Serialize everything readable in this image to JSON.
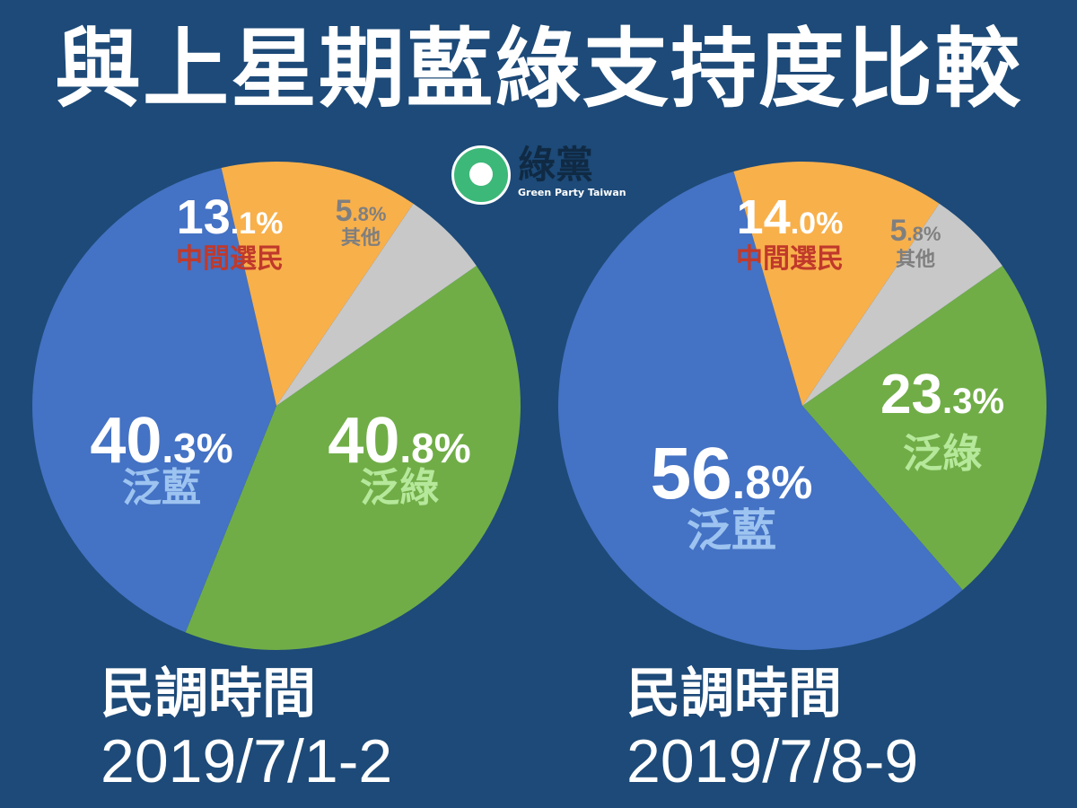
{
  "title": "與上星期藍綠支持度比較",
  "logo": {
    "name": "綠黨",
    "subtitle": "Green Party Taiwan"
  },
  "colors": {
    "background": "#1d4a78",
    "blue": "#4472c4",
    "orange": "#f8b04b",
    "gray": "#c8c8c8",
    "green": "#70ad47",
    "blue_label": "#9dc3f0",
    "green_label": "#b6e89b",
    "orange_label": "#c0392b",
    "gray_label": "#7f7f7f"
  },
  "chart_data": [
    {
      "type": "pie",
      "survey_label": "民調時間",
      "survey_date": "2019/7/1-2",
      "slices": [
        {
          "label": "泛綠",
          "value": 40.8,
          "int": "40",
          "dec": ".8%",
          "color": "#70ad47"
        },
        {
          "label": "泛藍",
          "value": 40.3,
          "int": "40",
          "dec": ".3%",
          "color": "#4472c4"
        },
        {
          "label": "中間選民",
          "value": 13.1,
          "int": "13",
          "dec": ".1%",
          "color": "#f8b04b"
        },
        {
          "label": "其他",
          "value": 5.8,
          "int": "5",
          "dec": ".8%",
          "color": "#c8c8c8"
        }
      ]
    },
    {
      "type": "pie",
      "survey_label": "民調時間",
      "survey_date": "2019/7/8-9",
      "slices": [
        {
          "label": "泛綠",
          "value": 23.3,
          "int": "23",
          "dec": ".3%",
          "color": "#70ad47"
        },
        {
          "label": "泛藍",
          "value": 56.8,
          "int": "56",
          "dec": ".8%",
          "color": "#4472c4"
        },
        {
          "label": "中間選民",
          "value": 14.0,
          "int": "14",
          "dec": ".0%",
          "color": "#f8b04b"
        },
        {
          "label": "其他",
          "value": 5.8,
          "int": "5",
          "dec": ".8%",
          "color": "#c8c8c8"
        }
      ]
    }
  ]
}
